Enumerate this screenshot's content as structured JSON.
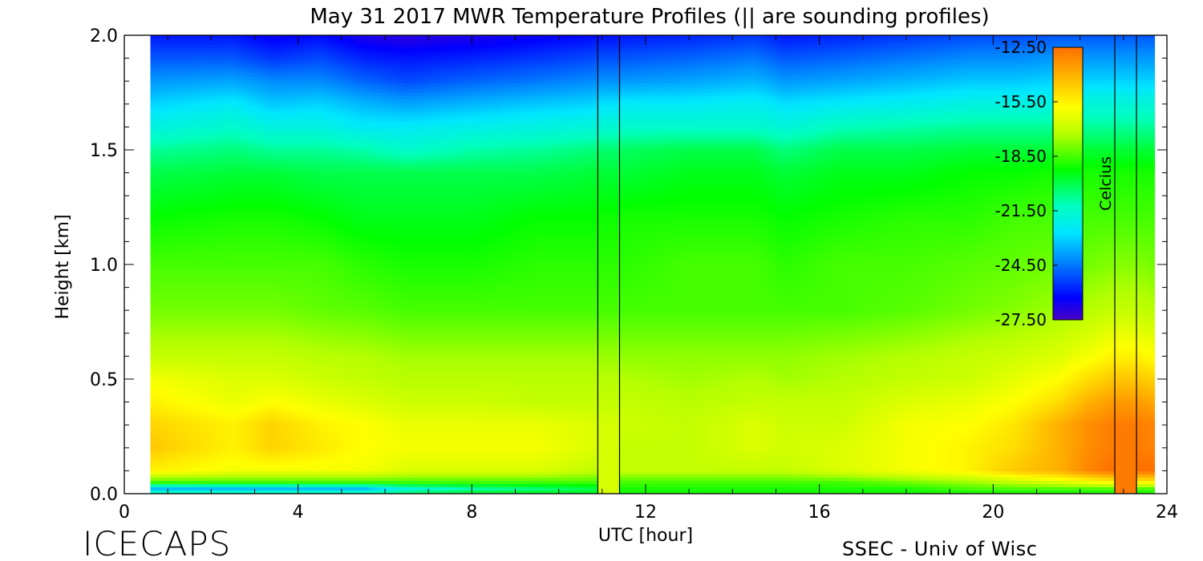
{
  "chart_data": {
    "type": "heatmap",
    "title": "May 31 2017 MWR Temperature Profiles (|| are sounding profiles)",
    "xlabel": "UTC [hour]",
    "ylabel": "Height [km]",
    "xlim": [
      0,
      24
    ],
    "ylim": [
      0,
      2
    ],
    "x_ticks": [
      "0",
      "4",
      "8",
      "12",
      "16",
      "20",
      "24"
    ],
    "y_ticks": [
      "0.0",
      "0.5",
      "1.0",
      "1.5",
      "2.0"
    ],
    "data_x_range": [
      0.6,
      23.7
    ],
    "colorbar": {
      "label": "Celcius",
      "range": [
        -27.5,
        -12.5
      ],
      "ticks": [
        "-12.50",
        "-15.50",
        "-18.50",
        "-21.50",
        "-24.50",
        "-27.50"
      ]
    },
    "sounding_times_utc": [
      10.9,
      11.4,
      22.8,
      23.3
    ],
    "gaps": [
      [
        10.9,
        11.4
      ],
      [
        22.8,
        23.3
      ]
    ],
    "height_levels_km": [
      0.0,
      0.02,
      0.05,
      0.1,
      0.2,
      0.3,
      0.4,
      0.5,
      0.6,
      0.8,
      1.0,
      1.2,
      1.4,
      1.5,
      1.6,
      1.7,
      1.8,
      1.9,
      2.0
    ],
    "times_utc": [
      0.6,
      2.5,
      3.4,
      4.5,
      5.5,
      6.5,
      8.0,
      9.5,
      10.8,
      11.5,
      13.0,
      14.5,
      15.2,
      16.5,
      18.0,
      19.5,
      20.5,
      21.5,
      22.2,
      22.8,
      23.3,
      23.7
    ],
    "temperature_c": [
      [
        -20.5,
        -20.5,
        -20.5,
        -20.5,
        -20.5,
        -20.0,
        -19.5,
        -19.5,
        -19.5,
        -19.0,
        -19.0,
        -19.0,
        -19.0,
        -19.0,
        -19.0,
        -19.0,
        -19.0,
        -19.0,
        -19.0,
        -19.0,
        -19.0,
        -19.0
      ],
      [
        -23.5,
        -23.5,
        -23.5,
        -23.5,
        -23.5,
        -22.0,
        -21.0,
        -20.5,
        -20.0,
        -19.0,
        -19.0,
        -19.0,
        -19.0,
        -19.0,
        -19.0,
        -18.5,
        -18.5,
        -18.5,
        -18.5,
        -18.5,
        -18.5,
        -18.5
      ],
      [
        -18.5,
        -18.5,
        -18.5,
        -18.5,
        -18.5,
        -18.5,
        -18.5,
        -18.5,
        -18.5,
        -18.5,
        -18.5,
        -18.5,
        -18.5,
        -18.5,
        -18.0,
        -17.5,
        -17.0,
        -16.5,
        -16.0,
        -15.5,
        -15.5,
        -15.5
      ],
      [
        -15.5,
        -16.0,
        -16.0,
        -16.0,
        -16.0,
        -16.5,
        -16.5,
        -16.5,
        -17.0,
        -17.0,
        -17.0,
        -17.0,
        -17.0,
        -16.5,
        -16.0,
        -15.5,
        -14.5,
        -14.0,
        -13.0,
        -12.5,
        -12.5,
        -12.5
      ],
      [
        -14.5,
        -15.5,
        -14.8,
        -15.3,
        -15.8,
        -16.0,
        -16.0,
        -16.0,
        -16.5,
        -17.0,
        -17.0,
        -16.5,
        -16.7,
        -16.5,
        -16.0,
        -15.5,
        -15.0,
        -14.0,
        -13.2,
        -12.8,
        -12.8,
        -13.0
      ],
      [
        -14.8,
        -15.5,
        -14.8,
        -15.5,
        -15.8,
        -16.2,
        -16.2,
        -16.2,
        -16.5,
        -16.8,
        -17.0,
        -16.5,
        -16.8,
        -16.8,
        -16.0,
        -15.8,
        -15.2,
        -14.0,
        -13.2,
        -12.8,
        -12.8,
        -13.0
      ],
      [
        -15.5,
        -16.2,
        -15.8,
        -16.2,
        -16.5,
        -16.8,
        -16.8,
        -17.0,
        -17.0,
        -17.0,
        -17.2,
        -17.0,
        -17.0,
        -17.0,
        -16.5,
        -16.2,
        -15.8,
        -15.0,
        -14.0,
        -13.5,
        -13.5,
        -13.8
      ],
      [
        -16.0,
        -16.5,
        -16.5,
        -16.8,
        -17.0,
        -17.2,
        -17.2,
        -17.2,
        -17.2,
        -17.3,
        -17.5,
        -17.3,
        -17.5,
        -17.3,
        -17.0,
        -16.8,
        -16.3,
        -15.8,
        -15.0,
        -14.5,
        -14.5,
        -14.8
      ],
      [
        -17.0,
        -17.0,
        -17.0,
        -17.2,
        -17.3,
        -17.5,
        -17.5,
        -17.5,
        -17.5,
        -17.7,
        -17.7,
        -17.7,
        -17.7,
        -17.5,
        -17.3,
        -17.0,
        -16.8,
        -16.5,
        -16.0,
        -15.5,
        -15.5,
        -15.8
      ],
      [
        -18.0,
        -18.0,
        -18.0,
        -18.2,
        -18.3,
        -18.5,
        -18.5,
        -18.5,
        -18.5,
        -18.5,
        -18.5,
        -18.5,
        -18.5,
        -18.5,
        -18.3,
        -18.0,
        -17.8,
        -17.5,
        -17.2,
        -17.0,
        -17.0,
        -17.2
      ],
      [
        -18.5,
        -18.5,
        -18.5,
        -18.5,
        -18.8,
        -19.0,
        -19.0,
        -18.8,
        -18.8,
        -18.8,
        -18.5,
        -18.5,
        -18.8,
        -18.5,
        -18.5,
        -18.3,
        -18.2,
        -18.0,
        -18.0,
        -17.8,
        -17.8,
        -18.0
      ],
      [
        -19.2,
        -19.0,
        -19.0,
        -19.2,
        -19.5,
        -19.5,
        -19.5,
        -19.2,
        -19.2,
        -19.0,
        -19.0,
        -19.0,
        -19.2,
        -19.0,
        -18.8,
        -18.8,
        -18.5,
        -18.5,
        -18.5,
        -18.5,
        -18.5,
        -18.5
      ],
      [
        -20.0,
        -19.8,
        -19.8,
        -20.0,
        -20.0,
        -20.0,
        -20.0,
        -20.0,
        -19.8,
        -19.8,
        -19.5,
        -19.5,
        -19.8,
        -19.5,
        -19.5,
        -19.2,
        -19.2,
        -19.0,
        -19.0,
        -19.0,
        -19.0,
        -19.0
      ],
      [
        -20.8,
        -20.5,
        -20.8,
        -20.8,
        -21.0,
        -21.5,
        -21.0,
        -20.8,
        -20.5,
        -20.2,
        -20.0,
        -20.0,
        -20.5,
        -20.0,
        -20.0,
        -19.8,
        -19.8,
        -19.8,
        -19.8,
        -19.8,
        -19.8,
        -19.8
      ],
      [
        -22.0,
        -21.5,
        -22.0,
        -22.0,
        -22.5,
        -22.5,
        -22.2,
        -22.0,
        -21.8,
        -21.5,
        -21.5,
        -21.5,
        -21.8,
        -21.2,
        -21.0,
        -20.8,
        -20.8,
        -20.8,
        -20.8,
        -20.8,
        -20.8,
        -20.8
      ],
      [
        -23.0,
        -22.5,
        -23.2,
        -23.0,
        -23.5,
        -23.8,
        -23.5,
        -23.2,
        -23.0,
        -22.5,
        -22.5,
        -22.3,
        -22.8,
        -22.5,
        -22.3,
        -22.0,
        -22.0,
        -22.0,
        -21.8,
        -21.8,
        -21.8,
        -21.8
      ],
      [
        -24.0,
        -23.8,
        -24.2,
        -24.2,
        -24.8,
        -25.2,
        -24.8,
        -24.5,
        -24.2,
        -24.0,
        -23.8,
        -23.5,
        -24.0,
        -23.8,
        -23.5,
        -23.2,
        -23.2,
        -23.0,
        -23.0,
        -23.0,
        -23.0,
        -23.0
      ],
      [
        -25.0,
        -25.0,
        -25.5,
        -25.2,
        -25.8,
        -26.0,
        -25.8,
        -25.5,
        -25.2,
        -25.0,
        -24.8,
        -24.5,
        -25.0,
        -24.8,
        -24.5,
        -24.2,
        -24.2,
        -24.0,
        -24.0,
        -24.0,
        -24.0,
        -24.0
      ],
      [
        -26.0,
        -26.0,
        -26.5,
        -26.2,
        -26.8,
        -27.0,
        -26.8,
        -26.5,
        -26.2,
        -26.0,
        -25.8,
        -25.5,
        -26.0,
        -25.8,
        -25.5,
        -25.2,
        -25.2,
        -25.0,
        -25.0,
        -25.0,
        -25.0,
        -25.0
      ]
    ]
  },
  "footer": {
    "left_text": "ICECAPS",
    "right_text": "SSEC - Univ of Wisc"
  }
}
